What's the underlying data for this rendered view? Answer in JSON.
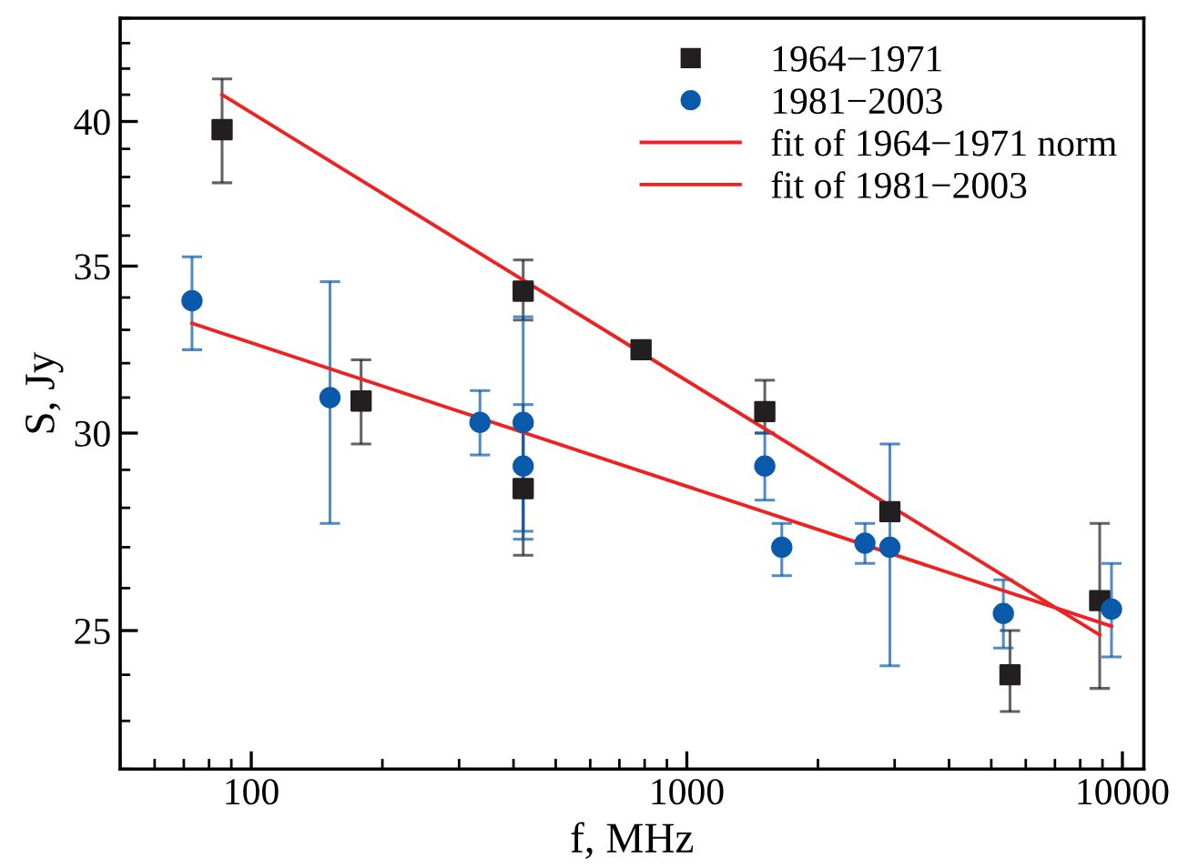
{
  "chart_data": {
    "type": "scatter",
    "xlabel": "f, MHz",
    "ylabel": "S, Jy",
    "log": "xy",
    "xlim": [
      50,
      11200
    ],
    "ylim": [
      22,
      44
    ],
    "xticks": [
      100,
      1000,
      10000
    ],
    "yticks": [
      25,
      30,
      35,
      40
    ],
    "legend": "top right",
    "grid": false,
    "series": [
      {
        "name": "1964−1971",
        "marker": "square",
        "color": "#231f20",
        "x": [
          85.7,
          178.7,
          421,
          421,
          785,
          1510,
          2925,
          5520,
          8870
        ],
        "values": [
          39.7,
          30.9,
          34.2,
          28.5,
          32.4,
          30.6,
          27.9,
          24.0,
          25.7
        ],
        "errors": [
          [
            37.8,
            41.6
          ],
          [
            29.7,
            32.1
          ],
          [
            33.3,
            35.2
          ],
          [
            26.8,
            30.2
          ],
          [
            32.2,
            32.6
          ],
          [
            30.0,
            31.5
          ],
          [
            27.7,
            28.1
          ],
          [
            23.2,
            25.0
          ],
          [
            23.7,
            27.6
          ]
        ]
      },
      {
        "name": "1981−2003",
        "marker": "circle",
        "color": "#0a5aab",
        "x": [
          73.1,
          151.6,
          335,
          421,
          421,
          1510,
          1652,
          2564,
          2925,
          5330,
          9440
        ],
        "values": [
          33.9,
          31.0,
          30.3,
          30.3,
          29.1,
          29.1,
          27.0,
          27.1,
          27.0,
          25.4,
          25.5
        ],
        "errors": [
          [
            32.4,
            35.3
          ],
          [
            27.6,
            34.5
          ],
          [
            29.4,
            31.2
          ],
          [
            27.2,
            33.4
          ],
          [
            27.4,
            30.8
          ],
          [
            28.2,
            30.0
          ],
          [
            26.3,
            27.6
          ],
          [
            26.6,
            27.6
          ],
          [
            24.2,
            29.7
          ],
          [
            24.6,
            26.2
          ],
          [
            24.4,
            26.6
          ]
        ]
      },
      {
        "name": "fit of 1964−1971 norm",
        "type": "line",
        "color": "#ee2222",
        "x": [
          85.7,
          8870
        ],
        "values": [
          41.0,
          24.9
        ]
      },
      {
        "name": "fit of 1981−2003",
        "type": "line",
        "color": "#ee2222",
        "x": [
          73.1,
          9440
        ],
        "values": [
          33.2,
          25.1
        ]
      }
    ]
  }
}
